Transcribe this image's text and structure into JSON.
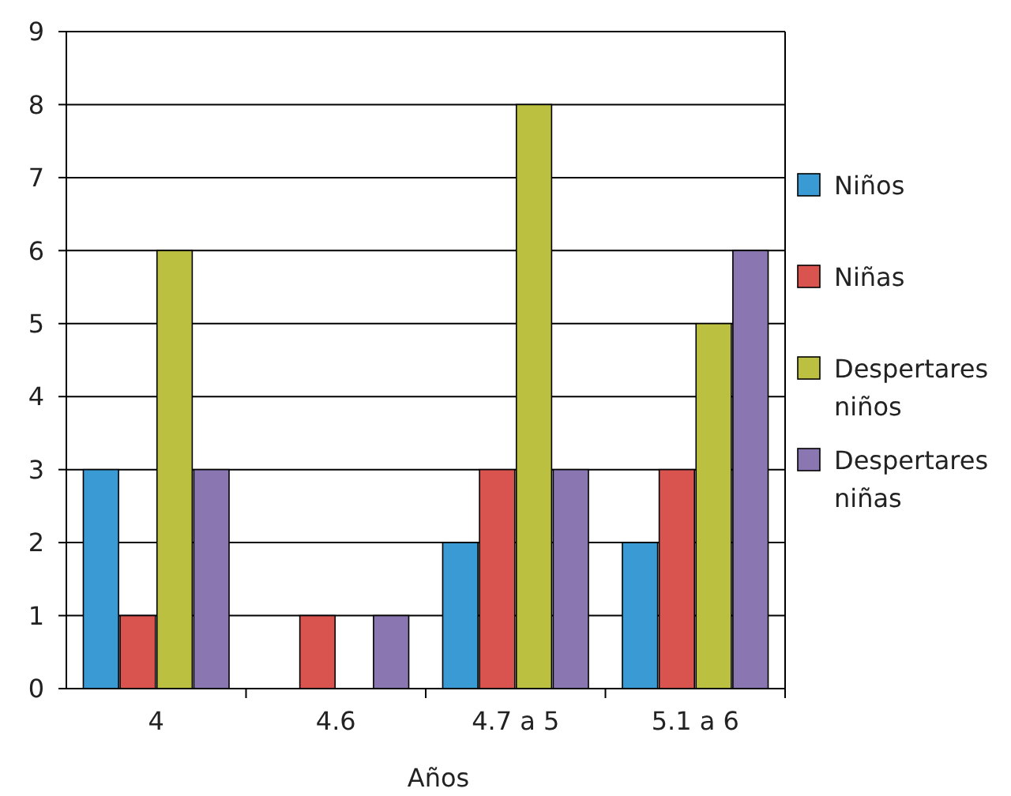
{
  "chart_data": {
    "type": "bar",
    "xlabel": "Años",
    "categories": [
      "4",
      "4.6",
      "4.7 a 5",
      "5.1 a 6"
    ],
    "series": [
      {
        "name": "Niños",
        "color": "#3a9ad4",
        "values": [
          3,
          0,
          2,
          2
        ]
      },
      {
        "name": "Niñas",
        "color": "#d9534f",
        "values": [
          1,
          1,
          3,
          3
        ]
      },
      {
        "name": "Despertares niños",
        "color": "#bcc040",
        "values": [
          6,
          0,
          8,
          5
        ]
      },
      {
        "name": "Despertares niñas",
        "color": "#8a76b0",
        "values": [
          3,
          1,
          3,
          6
        ]
      }
    ],
    "ylim": [
      0,
      9
    ],
    "yticks": [
      0,
      1,
      2,
      3,
      4,
      5,
      6,
      7,
      8,
      9
    ],
    "grid": "y",
    "legend": "right"
  }
}
